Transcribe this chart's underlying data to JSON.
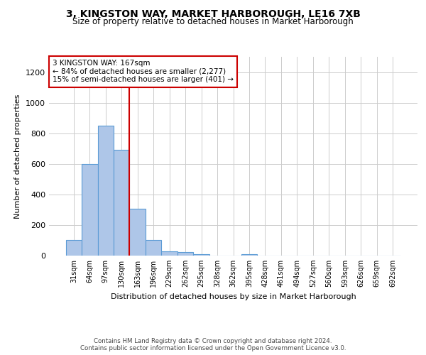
{
  "title": "3, KINGSTON WAY, MARKET HARBOROUGH, LE16 7XB",
  "subtitle": "Size of property relative to detached houses in Market Harborough",
  "xlabel": "Distribution of detached houses by size in Market Harborough",
  "ylabel": "Number of detached properties",
  "categories": [
    "31sqm",
    "64sqm",
    "97sqm",
    "130sqm",
    "163sqm",
    "196sqm",
    "229sqm",
    "262sqm",
    "295sqm",
    "328sqm",
    "362sqm",
    "395sqm",
    "428sqm",
    "461sqm",
    "494sqm",
    "527sqm",
    "560sqm",
    "593sqm",
    "626sqm",
    "659sqm",
    "692sqm"
  ],
  "values": [
    100,
    600,
    850,
    690,
    305,
    100,
    30,
    22,
    10,
    0,
    0,
    10,
    0,
    0,
    0,
    0,
    0,
    0,
    0,
    0,
    0
  ],
  "bar_color": "#aec6e8",
  "bar_edge_color": "#5b9bd5",
  "ylim": [
    0,
    1300
  ],
  "yticks": [
    0,
    200,
    400,
    600,
    800,
    1000,
    1200
  ],
  "vline_color": "#cc0000",
  "annotation_text": "3 KINGSTON WAY: 167sqm\n← 84% of detached houses are smaller (2,277)\n15% of semi-detached houses are larger (401) →",
  "annotation_box_color": "#ffffff",
  "annotation_box_edge": "#cc0000",
  "footer1": "Contains HM Land Registry data © Crown copyright and database right 2024.",
  "footer2": "Contains public sector information licensed under the Open Government Licence v3.0.",
  "bg_color": "#ffffff",
  "grid_color": "#cccccc"
}
